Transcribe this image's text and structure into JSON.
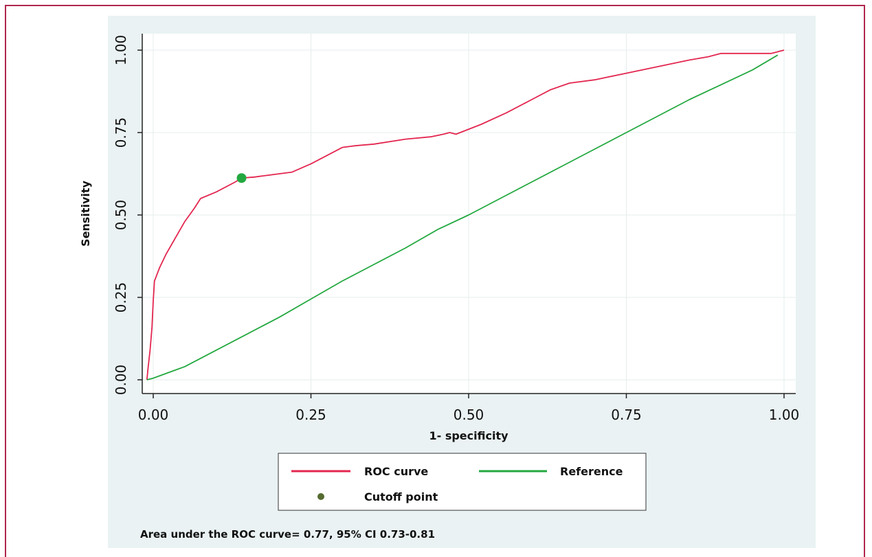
{
  "chart_data": {
    "type": "line",
    "xlabel": "1- specificity",
    "ylabel": "Sensitivity",
    "xlim": [
      0,
      1
    ],
    "ylim": [
      0,
      1
    ],
    "xticks": [
      "0.00",
      "0.25",
      "0.50",
      "0.75",
      "1.00"
    ],
    "yticks": [
      "0.00",
      "0.25",
      "0.50",
      "0.75",
      "1.00"
    ],
    "grid": true,
    "legend_position": "bottom",
    "series": [
      {
        "name": "ROC curve",
        "color": "#e3264f",
        "x": [
          -0.01,
          -0.008,
          -0.005,
          -0.002,
          0.0,
          0.002,
          0.004,
          0.01,
          0.02,
          0.035,
          0.05,
          0.065,
          0.075,
          0.1,
          0.13,
          0.14,
          0.16,
          0.2,
          0.22,
          0.25,
          0.28,
          0.3,
          0.32,
          0.35,
          0.4,
          0.44,
          0.46,
          0.47,
          0.48,
          0.52,
          0.56,
          0.6,
          0.63,
          0.66,
          0.7,
          0.75,
          0.8,
          0.85,
          0.88,
          0.9,
          0.92,
          0.94,
          0.96,
          0.98,
          1.0
        ],
        "y": [
          0.0,
          0.04,
          0.09,
          0.16,
          0.24,
          0.3,
          0.31,
          0.34,
          0.38,
          0.43,
          0.48,
          0.52,
          0.55,
          0.57,
          0.6,
          0.612,
          0.615,
          0.625,
          0.63,
          0.655,
          0.685,
          0.705,
          0.71,
          0.715,
          0.73,
          0.737,
          0.745,
          0.75,
          0.745,
          0.775,
          0.81,
          0.85,
          0.88,
          0.9,
          0.91,
          0.93,
          0.95,
          0.97,
          0.98,
          0.99,
          0.99,
          0.99,
          0.99,
          0.99,
          1.0
        ]
      },
      {
        "name": "Reference",
        "color": "#23a83f",
        "x": [
          -0.01,
          0.0,
          0.05,
          0.1,
          0.15,
          0.2,
          0.25,
          0.3,
          0.35,
          0.4,
          0.45,
          0.5,
          0.55,
          0.6,
          0.65,
          0.7,
          0.75,
          0.8,
          0.85,
          0.9,
          0.95,
          0.99
        ],
        "y": [
          0.0,
          0.005,
          0.04,
          0.09,
          0.14,
          0.19,
          0.245,
          0.3,
          0.35,
          0.4,
          0.455,
          0.5,
          0.55,
          0.6,
          0.65,
          0.7,
          0.75,
          0.8,
          0.85,
          0.895,
          0.94,
          0.985
        ]
      }
    ],
    "annotations": [
      {
        "name": "Cutoff point",
        "x": 0.14,
        "y": 0.612,
        "color": "#23a83f",
        "legend_color": "#556b2f"
      }
    ],
    "note": "Area under the ROC curve= 0.77, 95% CI 0.73-0.81"
  }
}
